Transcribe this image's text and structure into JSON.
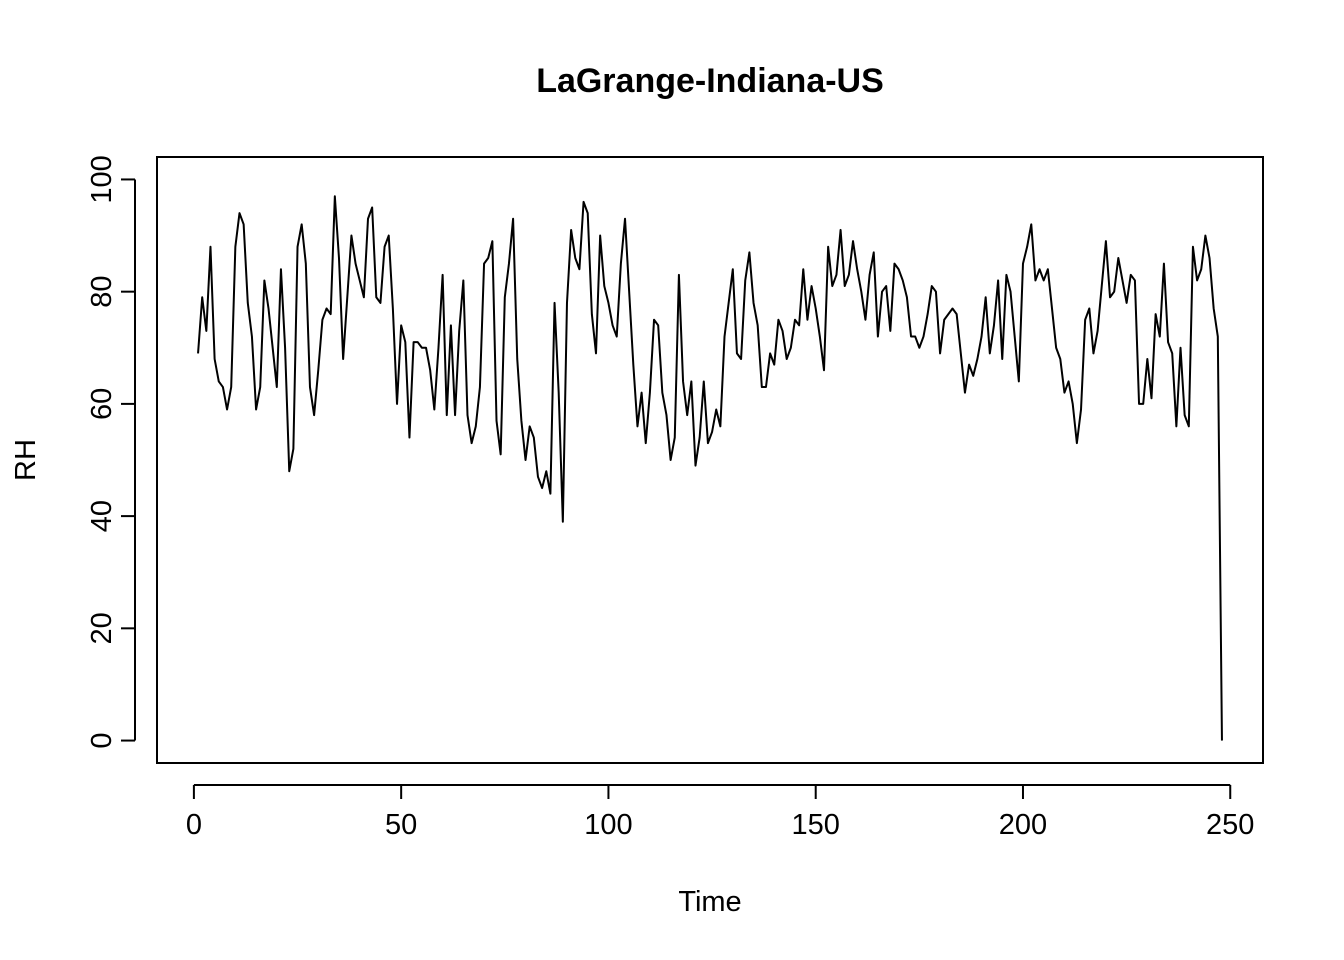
{
  "chart_data": {
    "type": "line",
    "title": "LaGrange-Indiana-US",
    "xlabel": "Time",
    "ylabel": "RH",
    "xlim": [
      -8.9,
      257.9
    ],
    "ylim": [
      -4,
      104
    ],
    "x_ticks": [
      0,
      50,
      100,
      150,
      200,
      250
    ],
    "y_ticks": [
      0,
      20,
      40,
      60,
      80,
      100
    ],
    "x_tick_labels": [
      "0",
      "50",
      "100",
      "150",
      "200",
      "250"
    ],
    "y_tick_labels": [
      "0",
      "20",
      "40",
      "60",
      "80",
      "100"
    ],
    "grid": false,
    "line_color": "#000000",
    "series": [
      {
        "x_start": 1,
        "values": [
          69,
          79,
          73,
          88,
          68,
          64,
          63,
          59,
          63,
          88,
          94,
          92,
          78,
          72,
          59,
          63,
          82,
          77,
          70,
          63,
          84,
          70,
          48,
          52,
          88,
          92,
          85,
          63,
          58,
          66,
          75,
          77,
          76,
          97,
          86,
          68,
          79,
          90,
          85,
          82,
          79,
          93,
          95,
          79,
          78,
          88,
          90,
          77,
          60,
          74,
          71,
          54,
          71,
          71,
          70,
          70,
          66,
          59,
          70,
          83,
          58,
          74,
          58,
          73,
          82,
          58,
          53,
          56,
          63,
          85,
          86,
          89,
          57,
          51,
          79,
          85,
          93,
          68,
          57,
          50,
          56,
          54,
          47,
          45,
          48,
          44,
          78,
          62,
          39,
          78,
          91,
          86,
          84,
          96,
          94,
          76,
          69,
          90,
          81,
          78,
          74,
          72,
          85,
          93,
          80,
          67,
          56,
          62,
          53,
          62,
          75,
          74,
          62,
          58,
          50,
          54,
          83,
          64,
          58,
          64,
          49,
          54,
          64,
          53,
          55,
          59,
          56,
          72,
          78,
          84,
          69,
          68,
          82,
          87,
          78,
          74,
          63,
          63,
          69,
          67,
          75,
          73,
          68,
          70,
          75,
          74,
          84,
          75,
          81,
          77,
          72,
          66,
          88,
          81,
          83,
          91,
          81,
          83,
          89,
          84,
          80,
          75,
          83,
          87,
          72,
          80,
          81,
          73,
          85,
          84,
          82,
          79,
          72,
          72,
          70,
          72,
          76,
          81,
          80,
          69,
          75,
          76,
          77,
          76,
          69,
          62,
          67,
          65,
          68,
          72,
          79,
          69,
          74,
          82,
          68,
          83,
          80,
          72,
          64,
          85,
          88,
          92,
          82,
          84,
          82,
          84,
          77,
          70,
          68,
          62,
          64,
          60,
          53,
          59,
          75,
          77,
          69,
          73,
          81,
          89,
          79,
          80,
          86,
          82,
          78,
          83,
          82,
          60,
          60,
          68,
          61,
          76,
          72,
          85,
          71,
          69,
          56,
          70,
          58,
          56,
          88,
          82,
          84,
          90,
          86,
          77,
          72,
          0
        ]
      }
    ]
  }
}
